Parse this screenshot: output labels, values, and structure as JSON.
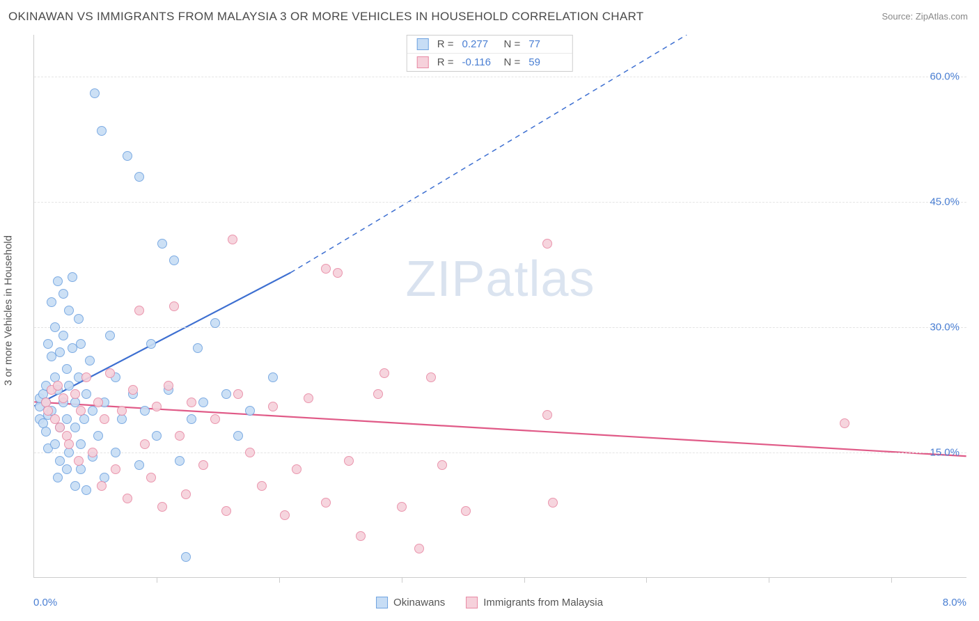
{
  "title": "OKINAWAN VS IMMIGRANTS FROM MALAYSIA 3 OR MORE VEHICLES IN HOUSEHOLD CORRELATION CHART",
  "source": "Source: ZipAtlas.com",
  "watermark_a": "ZIP",
  "watermark_b": "atlas",
  "y_axis_title": "3 or more Vehicles in Household",
  "chart": {
    "type": "scatter",
    "xlim": [
      0,
      8
    ],
    "ylim": [
      0,
      65
    ],
    "x_tick_positions": [
      1.05,
      2.1,
      3.15,
      4.2,
      5.25,
      6.3,
      7.35
    ],
    "y_ticks": [
      15,
      30,
      45,
      60
    ],
    "y_tick_labels": [
      "15.0%",
      "30.0%",
      "45.0%",
      "60.0%"
    ],
    "x_min_label": "0.0%",
    "x_max_label": "8.0%",
    "background_color": "#ffffff",
    "grid_color": "#e4e4e4",
    "axis_color": "#cccccc",
    "tick_label_color": "#4a7fd3",
    "marker_radius": 7,
    "series": [
      {
        "name": "Okinawans",
        "fill": "#c7ddf5",
        "stroke": "#6fa3e0",
        "line_color": "#3d6fd1",
        "r": "0.277",
        "n": "77",
        "trend": {
          "x1": 0.0,
          "y1": 20.5,
          "x2_solid": 2.2,
          "y2_solid": 36.5,
          "x2_dash": 5.6,
          "y2_dash": 65.0
        },
        "points": [
          [
            0.05,
            20.5
          ],
          [
            0.05,
            19
          ],
          [
            0.05,
            21.5
          ],
          [
            0.08,
            22
          ],
          [
            0.08,
            18.5
          ],
          [
            0.1,
            23
          ],
          [
            0.1,
            17.5
          ],
          [
            0.1,
            21
          ],
          [
            0.12,
            28
          ],
          [
            0.12,
            15.5
          ],
          [
            0.12,
            19.5
          ],
          [
            0.15,
            33
          ],
          [
            0.15,
            26.5
          ],
          [
            0.15,
            20
          ],
          [
            0.18,
            30
          ],
          [
            0.18,
            24
          ],
          [
            0.18,
            16
          ],
          [
            0.2,
            35.5
          ],
          [
            0.2,
            22.5
          ],
          [
            0.2,
            12
          ],
          [
            0.22,
            27
          ],
          [
            0.22,
            18
          ],
          [
            0.22,
            14
          ],
          [
            0.25,
            34
          ],
          [
            0.25,
            29
          ],
          [
            0.25,
            21
          ],
          [
            0.28,
            25
          ],
          [
            0.28,
            19
          ],
          [
            0.28,
            13
          ],
          [
            0.3,
            32
          ],
          [
            0.3,
            23
          ],
          [
            0.3,
            15
          ],
          [
            0.33,
            36
          ],
          [
            0.33,
            27.5
          ],
          [
            0.35,
            21
          ],
          [
            0.35,
            18
          ],
          [
            0.35,
            11
          ],
          [
            0.38,
            31
          ],
          [
            0.38,
            24
          ],
          [
            0.4,
            28
          ],
          [
            0.4,
            16
          ],
          [
            0.4,
            13
          ],
          [
            0.43,
            19
          ],
          [
            0.45,
            22
          ],
          [
            0.45,
            10.5
          ],
          [
            0.48,
            26
          ],
          [
            0.5,
            20
          ],
          [
            0.5,
            14.5
          ],
          [
            0.52,
            58
          ],
          [
            0.55,
            17
          ],
          [
            0.58,
            53.5
          ],
          [
            0.6,
            21
          ],
          [
            0.6,
            12
          ],
          [
            0.65,
            29
          ],
          [
            0.7,
            24
          ],
          [
            0.7,
            15
          ],
          [
            0.75,
            19
          ],
          [
            0.8,
            50.5
          ],
          [
            0.85,
            22
          ],
          [
            0.9,
            48
          ],
          [
            0.9,
            13.5
          ],
          [
            0.95,
            20
          ],
          [
            1.0,
            28
          ],
          [
            1.05,
            17
          ],
          [
            1.1,
            40
          ],
          [
            1.15,
            22.5
          ],
          [
            1.2,
            38
          ],
          [
            1.25,
            14
          ],
          [
            1.3,
            2.5
          ],
          [
            1.35,
            19
          ],
          [
            1.4,
            27.5
          ],
          [
            1.45,
            21
          ],
          [
            1.55,
            30.5
          ],
          [
            1.65,
            22
          ],
          [
            1.75,
            17
          ],
          [
            1.85,
            20
          ],
          [
            2.05,
            24
          ]
        ]
      },
      {
        "name": "Immigrants from Malaysia",
        "fill": "#f6d1db",
        "stroke": "#e88aa5",
        "line_color": "#e05a87",
        "r": "-0.116",
        "n": "59",
        "trend": {
          "x1": 0.0,
          "y1": 21.0,
          "x2_solid": 8.0,
          "y2_solid": 14.5,
          "x2_dash": 8.0,
          "y2_dash": 14.5
        },
        "points": [
          [
            0.1,
            21
          ],
          [
            0.12,
            20
          ],
          [
            0.15,
            22.5
          ],
          [
            0.18,
            19
          ],
          [
            0.2,
            23
          ],
          [
            0.22,
            18
          ],
          [
            0.25,
            21.5
          ],
          [
            0.28,
            17
          ],
          [
            0.3,
            16
          ],
          [
            0.35,
            22
          ],
          [
            0.38,
            14
          ],
          [
            0.4,
            20
          ],
          [
            0.45,
            24
          ],
          [
            0.5,
            15
          ],
          [
            0.55,
            21
          ],
          [
            0.58,
            11
          ],
          [
            0.6,
            19
          ],
          [
            0.65,
            24.5
          ],
          [
            0.7,
            13
          ],
          [
            0.75,
            20
          ],
          [
            0.8,
            9.5
          ],
          [
            0.85,
            22.5
          ],
          [
            0.9,
            32
          ],
          [
            0.95,
            16
          ],
          [
            1.0,
            12
          ],
          [
            1.05,
            20.5
          ],
          [
            1.1,
            8.5
          ],
          [
            1.15,
            23
          ],
          [
            1.2,
            32.5
          ],
          [
            1.25,
            17
          ],
          [
            1.3,
            10
          ],
          [
            1.35,
            21
          ],
          [
            1.45,
            13.5
          ],
          [
            1.55,
            19
          ],
          [
            1.65,
            8
          ],
          [
            1.7,
            40.5
          ],
          [
            1.75,
            22
          ],
          [
            1.85,
            15
          ],
          [
            1.95,
            11
          ],
          [
            2.05,
            20.5
          ],
          [
            2.15,
            7.5
          ],
          [
            2.25,
            13
          ],
          [
            2.35,
            21.5
          ],
          [
            2.5,
            37
          ],
          [
            2.5,
            9
          ],
          [
            2.7,
            14
          ],
          [
            2.8,
            5
          ],
          [
            2.95,
            22
          ],
          [
            3.0,
            24.5
          ],
          [
            3.15,
            8.5
          ],
          [
            3.3,
            3.5
          ],
          [
            3.4,
            24
          ],
          [
            3.5,
            13.5
          ],
          [
            3.7,
            8
          ],
          [
            4.4,
            40
          ],
          [
            4.4,
            19.5
          ],
          [
            4.45,
            9
          ],
          [
            6.95,
            18.5
          ],
          [
            2.6,
            36.5
          ]
        ]
      }
    ]
  },
  "legend_bottom": [
    "Okinawans",
    "Immigrants from Malaysia"
  ]
}
